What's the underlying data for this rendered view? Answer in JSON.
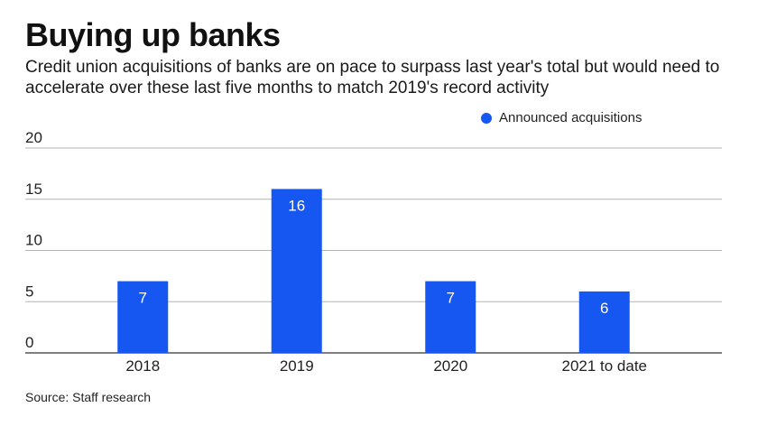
{
  "title": "Buying up banks",
  "subtitle": "Credit union acquisitions of banks are on pace to surpass last year's total but would need to accelerate over these last five months to match 2019's record activity",
  "source": "Source: Staff research",
  "colors": {
    "bar": "#1557f0",
    "grid": "#b3b3b3",
    "axis": "#333333"
  },
  "chart_data": {
    "type": "bar",
    "categories": [
      "2018",
      "2019",
      "2020",
      "2021 to date"
    ],
    "series": [
      {
        "name": "Announced acquisitions",
        "values": [
          7,
          16,
          7,
          6
        ]
      }
    ],
    "ylim": [
      0,
      20
    ],
    "yticks": [
      0,
      5,
      10,
      15,
      20
    ],
    "legend": "top-right",
    "grid": true,
    "data_labels": true
  }
}
